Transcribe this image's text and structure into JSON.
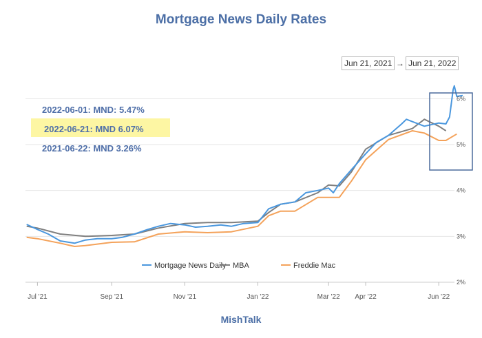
{
  "header": {
    "title": "Mortgage News Daily Rates",
    "range_start": "Jun 21, 2021",
    "range_arrow": "→",
    "range_end": "Jun 21, 2022"
  },
  "notes": [
    "2022-06-01: MND: 5.47%",
    "2022-06-21: MND 6.07%",
    "2021-06-22: MND 3.26%"
  ],
  "footer": "MishTalk",
  "colors": {
    "mnd": "#4a97de",
    "mba": "#7f7f7f",
    "freddie": "#f4a25a",
    "highlight": "#fdf6a3",
    "box": "#4a6a9c"
  },
  "chart_data": {
    "type": "line",
    "ylim": [
      2,
      6.5
    ],
    "yticks": [
      2,
      3,
      4,
      5,
      6
    ],
    "ytick_labels": [
      "2%",
      "3%",
      "4%",
      "5%",
      "6%"
    ],
    "x_range": [
      "2021-06-21",
      "2022-06-21"
    ],
    "xticks": [
      {
        "date": "2021-07-01",
        "label": "Jul '21"
      },
      {
        "date": "2021-09-01",
        "label": "Sep '21"
      },
      {
        "date": "2021-11-01",
        "label": "Nov '21"
      },
      {
        "date": "2022-01-01",
        "label": "Jan '22"
      },
      {
        "date": "2022-03-01",
        "label": "Mar '22"
      },
      {
        "date": "2022-04-01",
        "label": "Apr '22"
      },
      {
        "date": "2022-06-01",
        "label": "Jun '22"
      }
    ],
    "legend_position": "bottom",
    "series": [
      {
        "name": "Mortgage News Daily",
        "color": "#4a97de",
        "x": [
          "2021-06-22",
          "2021-07-01",
          "2021-07-10",
          "2021-07-20",
          "2021-08-01",
          "2021-08-10",
          "2021-08-20",
          "2021-09-01",
          "2021-09-10",
          "2021-09-20",
          "2021-10-01",
          "2021-10-10",
          "2021-10-20",
          "2021-11-01",
          "2021-11-10",
          "2021-11-20",
          "2021-12-01",
          "2021-12-10",
          "2021-12-20",
          "2022-01-01",
          "2022-01-10",
          "2022-01-20",
          "2022-02-01",
          "2022-02-10",
          "2022-02-20",
          "2022-03-01",
          "2022-03-05",
          "2022-03-10",
          "2022-03-20",
          "2022-04-01",
          "2022-04-10",
          "2022-04-20",
          "2022-05-01",
          "2022-05-05",
          "2022-05-10",
          "2022-05-20",
          "2022-06-01",
          "2022-06-07",
          "2022-06-10",
          "2022-06-13",
          "2022-06-14",
          "2022-06-16",
          "2022-06-21"
        ],
        "y": [
          3.26,
          3.15,
          3.05,
          2.9,
          2.85,
          2.92,
          2.95,
          2.95,
          2.98,
          3.05,
          3.15,
          3.22,
          3.28,
          3.25,
          3.2,
          3.22,
          3.25,
          3.22,
          3.28,
          3.3,
          3.6,
          3.7,
          3.75,
          3.95,
          4.0,
          4.05,
          3.95,
          4.15,
          4.45,
          4.8,
          5.05,
          5.2,
          5.45,
          5.55,
          5.5,
          5.4,
          5.47,
          5.45,
          5.6,
          6.2,
          6.28,
          6.05,
          6.07
        ]
      },
      {
        "name": "MBA",
        "color": "#7f7f7f",
        "x": [
          "2021-06-22",
          "2021-07-01",
          "2021-07-20",
          "2021-08-10",
          "2021-09-01",
          "2021-09-20",
          "2021-10-10",
          "2021-11-01",
          "2021-11-20",
          "2021-12-10",
          "2022-01-01",
          "2022-01-10",
          "2022-01-20",
          "2022-02-01",
          "2022-02-20",
          "2022-03-01",
          "2022-03-10",
          "2022-03-20",
          "2022-04-01",
          "2022-04-20",
          "2022-05-10",
          "2022-05-20",
          "2022-06-01",
          "2022-06-07"
        ],
        "y": [
          3.22,
          3.18,
          3.05,
          3.0,
          3.02,
          3.05,
          3.18,
          3.28,
          3.3,
          3.3,
          3.33,
          3.52,
          3.7,
          3.75,
          3.95,
          4.12,
          4.1,
          4.4,
          4.9,
          5.2,
          5.35,
          5.55,
          5.4,
          5.3
        ]
      },
      {
        "name": "Freddie Mac",
        "color": "#f4a25a",
        "x": [
          "2021-06-22",
          "2021-07-01",
          "2021-07-20",
          "2021-08-01",
          "2021-08-10",
          "2021-09-01",
          "2021-09-20",
          "2021-10-10",
          "2021-11-01",
          "2021-11-20",
          "2021-12-10",
          "2022-01-01",
          "2022-01-10",
          "2022-01-20",
          "2022-02-01",
          "2022-02-20",
          "2022-03-01",
          "2022-03-10",
          "2022-03-20",
          "2022-04-01",
          "2022-04-20",
          "2022-05-10",
          "2022-05-20",
          "2022-06-01",
          "2022-06-07",
          "2022-06-16"
        ],
        "y": [
          2.98,
          2.95,
          2.85,
          2.78,
          2.8,
          2.87,
          2.88,
          3.05,
          3.1,
          3.08,
          3.1,
          3.22,
          3.45,
          3.55,
          3.55,
          3.85,
          3.85,
          3.85,
          4.2,
          4.67,
          5.11,
          5.3,
          5.25,
          5.09,
          5.09,
          5.23
        ]
      }
    ]
  }
}
